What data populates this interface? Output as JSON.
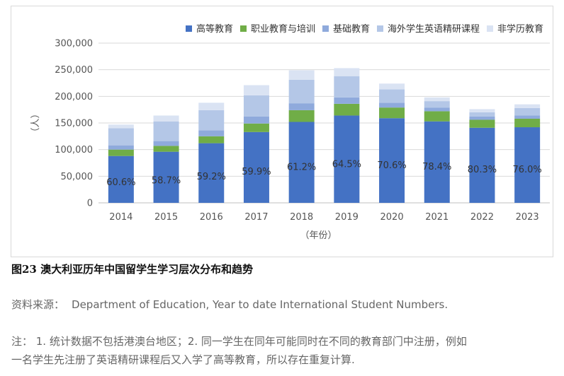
{
  "chart_data": {
    "type": "bar",
    "stacked": true,
    "categories": [
      "2014",
      "2015",
      "2016",
      "2017",
      "2018",
      "2019",
      "2020",
      "2021",
      "2022",
      "2023"
    ],
    "series": [
      {
        "name": "高等教育",
        "color": "#4472c4",
        "values": [
          88000,
          96000,
          112000,
          133000,
          152000,
          164000,
          159000,
          153000,
          141000,
          142000
        ]
      },
      {
        "name": "职业教育与培训",
        "color": "#70ad47",
        "values": [
          12000,
          11000,
          13000,
          16000,
          22000,
          22000,
          20000,
          19000,
          15000,
          16000
        ]
      },
      {
        "name": "基础教育",
        "color": "#8faadc",
        "values": [
          8000,
          9000,
          11000,
          13000,
          13000,
          12000,
          9000,
          7000,
          6000,
          6000
        ]
      },
      {
        "name": "海外学生英语精研课程",
        "color": "#b4c7e7",
        "values": [
          32000,
          37000,
          38000,
          40000,
          44000,
          40000,
          25000,
          12000,
          8000,
          14000
        ]
      },
      {
        "name": "非学历教育",
        "color": "#dae3f3",
        "values": [
          7000,
          11000,
          14000,
          19000,
          18000,
          15000,
          11000,
          7000,
          6000,
          7000
        ]
      }
    ],
    "data_labels": [
      "60.6%",
      "58.7%",
      "59.2%",
      "59.9%",
      "61.2%",
      "64.5%",
      "70.6%",
      "78.4%",
      "80.3%",
      "76.0%"
    ],
    "xlabel": "（年份）",
    "ylabel": "（人）",
    "ylim": [
      0,
      300000
    ],
    "yticks": [
      0,
      50000,
      100000,
      150000,
      200000,
      250000,
      300000
    ],
    "ytick_labels": [
      "0",
      "50,000",
      "100,000",
      "150,000",
      "200,000",
      "250,000",
      "300,000"
    ],
    "grid": true,
    "legend_position": "top"
  },
  "caption": "图23 澳大利亚历年中国留学生学习层次分布和趋势",
  "source": {
    "label": "资料来源：",
    "text": "Department of Education, Year to date International Student Numbers."
  },
  "note": {
    "line1": "注： 1. 统计数据不包括港澳台地区；2. 同一学生在同年可能同时在不同的教育部门中注册，例如",
    "line2": "一名学生先注册了英语精研课程后又入学了高等教育，所以存在重复计算."
  }
}
